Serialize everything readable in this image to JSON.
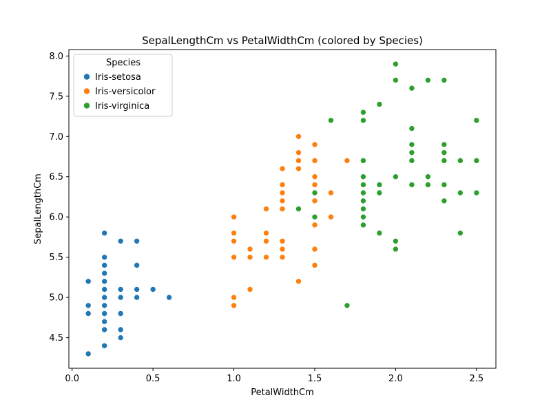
{
  "chart_data": {
    "type": "scatter",
    "title": "SepalLengthCm vs PetalWidthCm (colored by Species)",
    "xlabel": "PetalWidthCm",
    "ylabel": "SepalLengthCm",
    "xlim": [
      -0.02,
      2.62
    ],
    "ylim": [
      4.12,
      8.08
    ],
    "xticks": [
      0.0,
      0.5,
      1.0,
      1.5,
      2.0,
      2.5
    ],
    "xtick_labels": [
      "0.0",
      "0.5",
      "1.0",
      "1.5",
      "2.0",
      "2.5"
    ],
    "yticks": [
      4.5,
      5.0,
      5.5,
      6.0,
      6.5,
      7.0,
      7.5,
      8.0
    ],
    "ytick_labels": [
      "4.5",
      "5.0",
      "5.5",
      "6.0",
      "6.5",
      "7.0",
      "7.5",
      "8.0"
    ],
    "grid": false,
    "legend": {
      "title": "Species",
      "position": "top-left"
    },
    "series": [
      {
        "name": "Iris-setosa",
        "color": "#1f77b4",
        "points": [
          [
            0.1,
            5.2
          ],
          [
            0.1,
            4.9
          ],
          [
            0.1,
            4.8
          ],
          [
            0.1,
            4.3
          ],
          [
            0.2,
            5.8
          ],
          [
            0.2,
            5.5
          ],
          [
            0.2,
            5.4
          ],
          [
            0.2,
            5.3
          ],
          [
            0.2,
            5.2
          ],
          [
            0.2,
            5.1
          ],
          [
            0.2,
            5.0
          ],
          [
            0.2,
            4.9
          ],
          [
            0.2,
            4.8
          ],
          [
            0.2,
            4.7
          ],
          [
            0.2,
            4.6
          ],
          [
            0.2,
            4.4
          ],
          [
            0.3,
            5.7
          ],
          [
            0.3,
            5.1
          ],
          [
            0.3,
            5.0
          ],
          [
            0.3,
            4.8
          ],
          [
            0.3,
            4.6
          ],
          [
            0.3,
            4.5
          ],
          [
            0.4,
            5.7
          ],
          [
            0.4,
            5.4
          ],
          [
            0.4,
            5.1
          ],
          [
            0.4,
            5.0
          ],
          [
            0.5,
            5.1
          ],
          [
            0.6,
            5.0
          ]
        ]
      },
      {
        "name": "Iris-versicolor",
        "color": "#ff7f0e",
        "points": [
          [
            1.0,
            6.0
          ],
          [
            1.0,
            5.8
          ],
          [
            1.0,
            5.7
          ],
          [
            1.0,
            5.5
          ],
          [
            1.0,
            5.0
          ],
          [
            1.0,
            4.9
          ],
          [
            1.1,
            5.6
          ],
          [
            1.1,
            5.5
          ],
          [
            1.1,
            5.1
          ],
          [
            1.2,
            6.1
          ],
          [
            1.2,
            5.8
          ],
          [
            1.2,
            5.7
          ],
          [
            1.2,
            5.5
          ],
          [
            1.3,
            6.6
          ],
          [
            1.3,
            6.4
          ],
          [
            1.3,
            6.3
          ],
          [
            1.3,
            6.2
          ],
          [
            1.3,
            6.1
          ],
          [
            1.3,
            5.7
          ],
          [
            1.3,
            5.6
          ],
          [
            1.3,
            5.5
          ],
          [
            1.4,
            7.0
          ],
          [
            1.4,
            6.8
          ],
          [
            1.4,
            6.7
          ],
          [
            1.4,
            6.6
          ],
          [
            1.4,
            5.2
          ],
          [
            1.5,
            6.9
          ],
          [
            1.5,
            6.7
          ],
          [
            1.5,
            6.5
          ],
          [
            1.5,
            6.4
          ],
          [
            1.5,
            6.2
          ],
          [
            1.5,
            6.0
          ],
          [
            1.5,
            5.9
          ],
          [
            1.5,
            5.6
          ],
          [
            1.5,
            5.4
          ],
          [
            1.6,
            6.3
          ],
          [
            1.6,
            6.0
          ],
          [
            1.7,
            6.7
          ]
        ]
      },
      {
        "name": "Iris-virginica",
        "color": "#2ca02c",
        "points": [
          [
            1.4,
            6.1
          ],
          [
            1.5,
            6.3
          ],
          [
            1.5,
            6.0
          ],
          [
            1.6,
            7.2
          ],
          [
            1.7,
            4.9
          ],
          [
            1.8,
            7.3
          ],
          [
            1.8,
            7.2
          ],
          [
            1.8,
            6.7
          ],
          [
            1.8,
            6.5
          ],
          [
            1.8,
            6.4
          ],
          [
            1.8,
            6.3
          ],
          [
            1.8,
            6.2
          ],
          [
            1.8,
            6.1
          ],
          [
            1.8,
            6.0
          ],
          [
            1.8,
            5.9
          ],
          [
            1.9,
            7.4
          ],
          [
            1.9,
            6.4
          ],
          [
            1.9,
            6.3
          ],
          [
            1.9,
            5.8
          ],
          [
            2.0,
            7.9
          ],
          [
            2.0,
            7.7
          ],
          [
            2.0,
            6.5
          ],
          [
            2.0,
            5.7
          ],
          [
            2.0,
            5.6
          ],
          [
            2.1,
            7.6
          ],
          [
            2.1,
            7.1
          ],
          [
            2.1,
            6.9
          ],
          [
            2.1,
            6.8
          ],
          [
            2.1,
            6.7
          ],
          [
            2.1,
            6.4
          ],
          [
            2.2,
            7.7
          ],
          [
            2.2,
            6.5
          ],
          [
            2.2,
            6.4
          ],
          [
            2.3,
            7.7
          ],
          [
            2.3,
            6.9
          ],
          [
            2.3,
            6.8
          ],
          [
            2.3,
            6.7
          ],
          [
            2.3,
            6.4
          ],
          [
            2.3,
            6.2
          ],
          [
            2.4,
            6.7
          ],
          [
            2.4,
            6.3
          ],
          [
            2.4,
            5.8
          ],
          [
            2.5,
            7.2
          ],
          [
            2.5,
            6.7
          ],
          [
            2.5,
            6.3
          ]
        ]
      }
    ]
  }
}
